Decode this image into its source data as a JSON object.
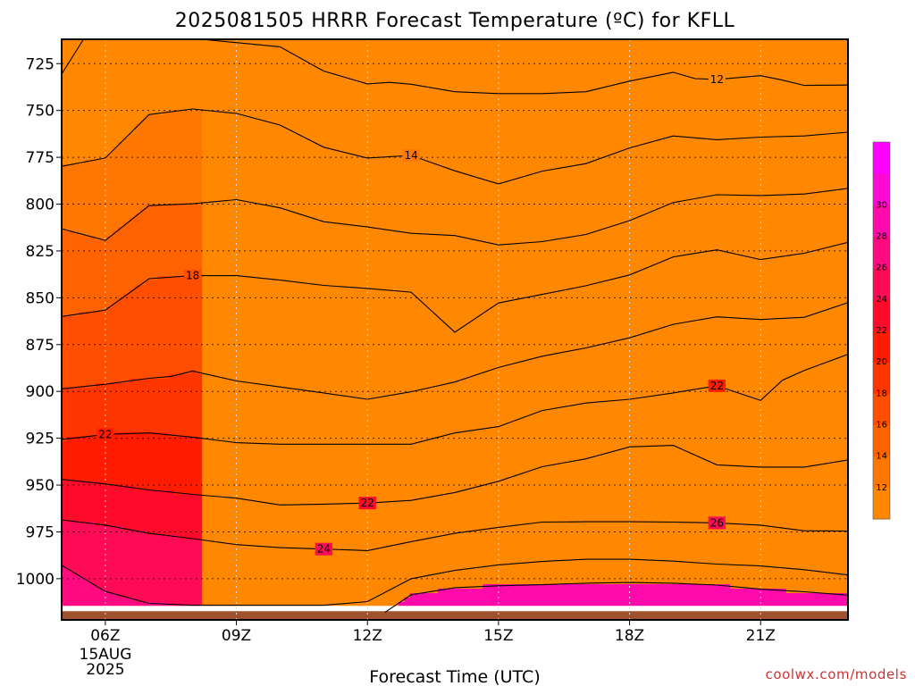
{
  "chart_data": {
    "type": "contour",
    "title": "2025081505 HRRR Forecast Temperature (ºC) for KFLL",
    "xlabel": "Forecast Time (UTC)",
    "ylabel": "",
    "credit": "coolwx.com/models",
    "x_ticks": [
      "06Z",
      "09Z",
      "12Z",
      "15Z",
      "18Z",
      "21Z"
    ],
    "x_date_lines": [
      "15AUG",
      "2025"
    ],
    "y_ticks": [
      725,
      750,
      775,
      800,
      825,
      850,
      875,
      900,
      925,
      950,
      975,
      1000
    ],
    "x_range_hours": [
      5,
      23
    ],
    "y_range_hPa": [
      712,
      1022
    ],
    "colorbar": {
      "levels": [
        10,
        12,
        14,
        16,
        18,
        20,
        22,
        24,
        26,
        28,
        30,
        32
      ],
      "labels": [
        12,
        14,
        16,
        18,
        20,
        22,
        24,
        26,
        28,
        30
      ],
      "colors": [
        "#ff8800",
        "#ff7600",
        "#ff6300",
        "#ff4e00",
        "#ff3500",
        "#ff1c00",
        "#ff0a2a",
        "#ff0a55",
        "#ff0a80",
        "#ff0aab",
        "#ff0ad5",
        "#ff00ff"
      ]
    },
    "contours": [
      {
        "value": 10,
        "points": [
          [
            5,
            730.6
          ],
          [
            5.5,
            712
          ]
        ]
      },
      {
        "value": 10,
        "points": [
          [
            8.2,
            712
          ],
          [
            10,
            716
          ],
          [
            11,
            729
          ],
          [
            12,
            735.8
          ],
          [
            12.5,
            735
          ],
          [
            13,
            736
          ],
          [
            14,
            740
          ],
          [
            15,
            741
          ],
          [
            16,
            741
          ],
          [
            17,
            740
          ],
          [
            18,
            734.3
          ],
          [
            19,
            729.6
          ],
          [
            19.5,
            733
          ],
          [
            20,
            733.4
          ],
          [
            21,
            731.4
          ],
          [
            21.5,
            733.8
          ],
          [
            22,
            736.6
          ],
          [
            23,
            736.4
          ]
        ],
        "labels": [
          {
            "x": 20,
            "text": "12"
          }
        ]
      },
      {
        "value": 12,
        "points": [
          [
            5,
            779.8
          ],
          [
            6,
            775.4
          ],
          [
            7,
            752.2
          ],
          [
            8,
            749.2
          ],
          [
            9,
            751.6
          ],
          [
            10,
            757.8
          ],
          [
            11,
            769.6
          ],
          [
            12,
            775.4
          ],
          [
            13,
            774
          ],
          [
            14,
            782.2
          ],
          [
            15,
            789.2
          ],
          [
            16,
            782.4
          ],
          [
            17,
            778.4
          ],
          [
            18,
            770
          ],
          [
            19,
            763.6
          ],
          [
            20,
            765.6
          ],
          [
            21,
            764.2
          ],
          [
            22,
            763.6
          ],
          [
            23,
            761.6
          ]
        ],
        "labels": [
          {
            "x": 13,
            "text": "14"
          }
        ]
      },
      {
        "value": 14,
        "points": [
          [
            5,
            813.2
          ],
          [
            6,
            819.4
          ],
          [
            7,
            800.8
          ],
          [
            8,
            799.8
          ],
          [
            9,
            797.6
          ],
          [
            10,
            802
          ],
          [
            11,
            809.4
          ],
          [
            12,
            812.2
          ],
          [
            13,
            815.6
          ],
          [
            14,
            816.8
          ],
          [
            15,
            821.8
          ],
          [
            16,
            820
          ],
          [
            17,
            816.2
          ],
          [
            18,
            808.8
          ],
          [
            19,
            799.2
          ],
          [
            20,
            795
          ],
          [
            21,
            795.4
          ],
          [
            22,
            794.6
          ],
          [
            23,
            791.6
          ]
        ]
      },
      {
        "value": 16,
        "points": [
          [
            5,
            860
          ],
          [
            6,
            856.6
          ],
          [
            7,
            839.8
          ],
          [
            8,
            838.2
          ],
          [
            9,
            838.2
          ],
          [
            10,
            840.6
          ],
          [
            11,
            843.4
          ],
          [
            12,
            845
          ],
          [
            13,
            847
          ],
          [
            14,
            868.4
          ],
          [
            15,
            852.8
          ],
          [
            16,
            848.2
          ],
          [
            17,
            843.6
          ],
          [
            18,
            837.8
          ],
          [
            19,
            828.2
          ],
          [
            20,
            824.4
          ],
          [
            21,
            829.6
          ],
          [
            22,
            826.2
          ],
          [
            23,
            820.4
          ]
        ],
        "labels": [
          {
            "x": 8,
            "text": "18"
          }
        ]
      },
      {
        "value": 18,
        "points": [
          [
            5,
            898.6
          ],
          [
            6,
            896.2
          ],
          [
            7,
            893
          ],
          [
            7.5,
            892
          ],
          [
            8,
            889.2
          ],
          [
            9,
            894.4
          ],
          [
            10,
            897.6
          ],
          [
            11,
            900.8
          ],
          [
            12,
            904.2
          ],
          [
            13,
            900.2
          ],
          [
            14,
            895
          ],
          [
            15,
            887.2
          ],
          [
            16,
            881.2
          ],
          [
            17,
            876.8
          ],
          [
            18,
            871.4
          ],
          [
            19,
            864.2
          ],
          [
            20,
            860.2
          ],
          [
            21,
            861.6
          ],
          [
            22,
            860.4
          ],
          [
            23,
            852.6
          ]
        ]
      },
      {
        "value": 20,
        "points": [
          [
            5,
            925.6
          ],
          [
            6,
            923
          ],
          [
            7,
            922.2
          ],
          [
            8,
            924.4
          ],
          [
            9,
            927.4
          ],
          [
            10,
            928.2
          ],
          [
            11,
            928.2
          ],
          [
            12,
            928.2
          ],
          [
            13,
            928.2
          ],
          [
            14,
            922.2
          ],
          [
            15,
            918.8
          ],
          [
            16,
            910.2
          ],
          [
            17,
            906.2
          ],
          [
            18,
            904.2
          ],
          [
            19,
            900.8
          ],
          [
            20,
            897
          ],
          [
            21,
            904.8
          ],
          [
            21.5,
            894
          ],
          [
            22,
            888.8
          ],
          [
            23,
            880.2
          ]
        ],
        "labels": [
          {
            "x": 6,
            "text": "22"
          },
          {
            "x": 20,
            "text": "22"
          }
        ]
      },
      {
        "value": 22,
        "points": [
          [
            5,
            947
          ],
          [
            6,
            949.4
          ],
          [
            7,
            952.6
          ],
          [
            8,
            955
          ],
          [
            9,
            957
          ],
          [
            10,
            960.6
          ],
          [
            11,
            960.2
          ],
          [
            12,
            959.6
          ],
          [
            13,
            958.2
          ],
          [
            14,
            954
          ],
          [
            15,
            948
          ],
          [
            16,
            940.2
          ],
          [
            17,
            936
          ],
          [
            18,
            929.6
          ],
          [
            19,
            928.8
          ],
          [
            20,
            939.2
          ],
          [
            21,
            940.4
          ],
          [
            22,
            940.4
          ],
          [
            23,
            936.6
          ]
        ],
        "labels": [
          {
            "x": 12,
            "text": "22"
          }
        ]
      },
      {
        "value": 24,
        "points": [
          [
            5,
            968.6
          ],
          [
            6,
            971.4
          ],
          [
            7,
            975.8
          ],
          [
            8,
            978.6
          ],
          [
            9,
            981.8
          ],
          [
            10,
            983.4
          ],
          [
            11,
            984.2
          ],
          [
            12,
            985
          ],
          [
            13,
            980.2
          ],
          [
            14,
            975.8
          ],
          [
            15,
            972.6
          ],
          [
            16,
            969.8
          ],
          [
            17,
            969.6
          ],
          [
            18,
            969.6
          ],
          [
            19,
            969.8
          ],
          [
            20,
            970.2
          ],
          [
            21,
            971.4
          ],
          [
            22,
            974.4
          ],
          [
            23,
            974.6
          ]
        ],
        "labels": [
          {
            "x": 11,
            "text": "24"
          },
          {
            "x": 20,
            "text": "26"
          }
        ]
      },
      {
        "value": 26,
        "points": [
          [
            5,
            992.8
          ],
          [
            6,
            1006.8
          ],
          [
            7,
            1013.2
          ],
          [
            8,
            1014.2
          ],
          [
            9,
            1014.2
          ],
          [
            10,
            1014.2
          ],
          [
            11,
            1014.2
          ],
          [
            12,
            1012.2
          ],
          [
            13,
            1000
          ],
          [
            14,
            995.6
          ],
          [
            15,
            992.6
          ],
          [
            16,
            990.8
          ],
          [
            17,
            989.6
          ],
          [
            18,
            989.6
          ],
          [
            19,
            990.6
          ],
          [
            20,
            992.2
          ],
          [
            21,
            993.2
          ],
          [
            22,
            995.2
          ],
          [
            23,
            998
          ]
        ]
      },
      {
        "value": 28,
        "points": [
          [
            12.4,
            1018
          ],
          [
            13,
            1008.6
          ],
          [
            14,
            1004.8
          ],
          [
            15,
            1003.8
          ],
          [
            16,
            1003.2
          ],
          [
            17,
            1002.4
          ],
          [
            18,
            1002
          ],
          [
            19,
            1002.4
          ],
          [
            20,
            1003.4
          ],
          [
            21,
            1005.6
          ],
          [
            22,
            1007
          ],
          [
            23,
            1008.8
          ]
        ]
      }
    ],
    "ground": {
      "top_hPa": 1014.5,
      "bottom_hPa": 1018.3,
      "color": "#a0522d"
    }
  }
}
